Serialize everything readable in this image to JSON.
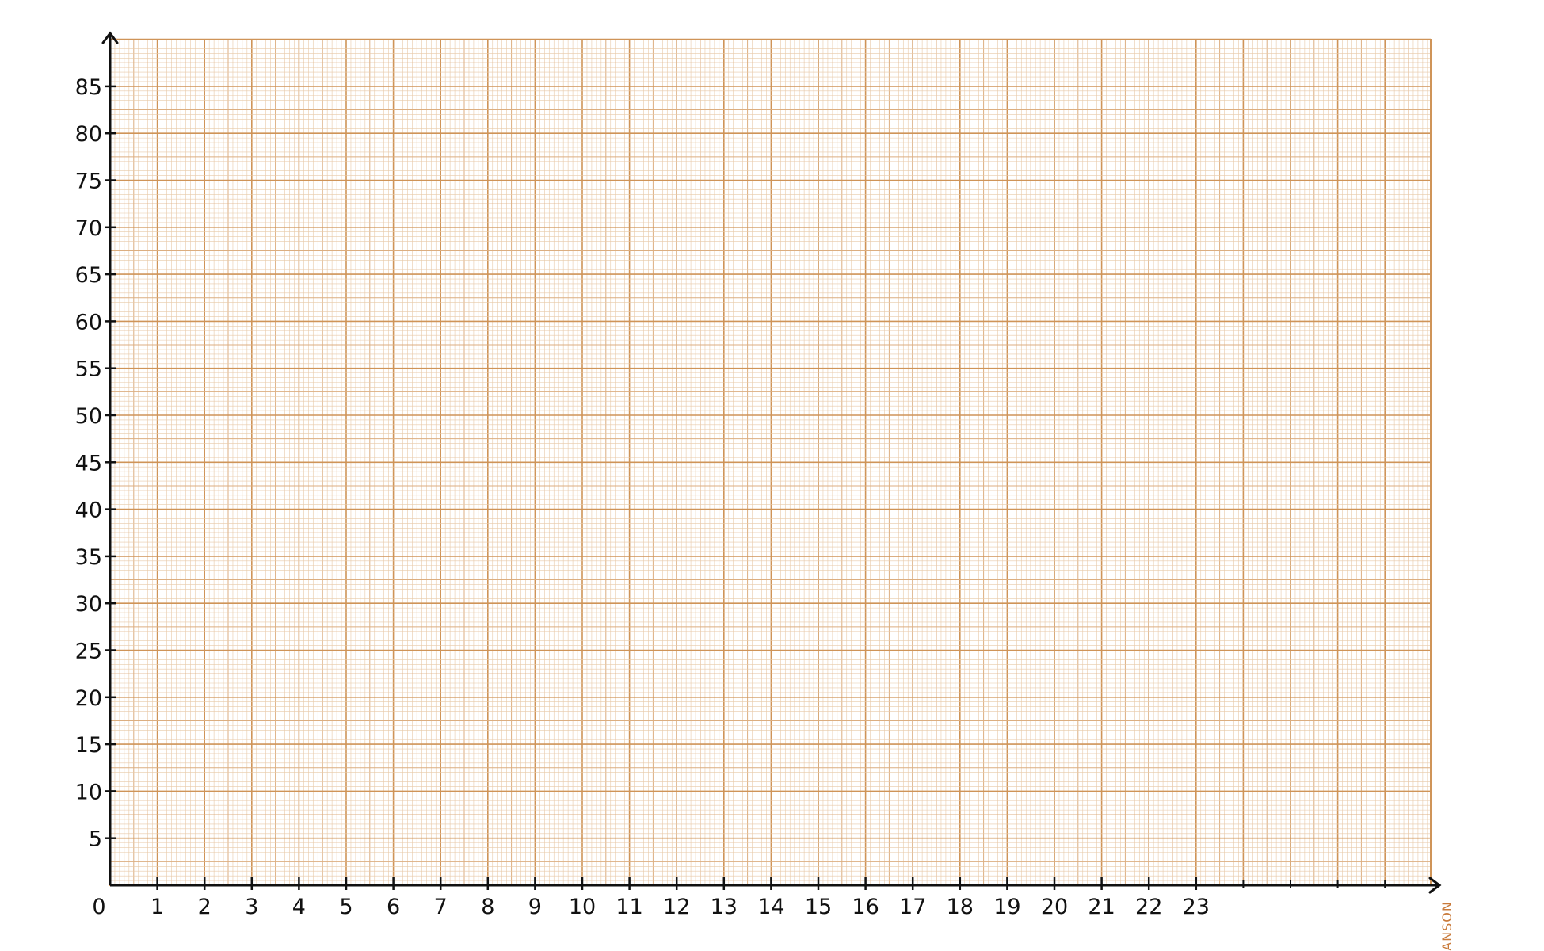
{
  "chart_data": {
    "type": "line",
    "title": "",
    "xlabel": "",
    "ylabel": "",
    "x_ticks": [
      "0",
      "1",
      "2",
      "3",
      "4",
      "5",
      "6",
      "7",
      "8",
      "9",
      "10",
      "11",
      "12",
      "13",
      "14",
      "15",
      "16",
      "17",
      "18",
      "19",
      "20",
      "21",
      "22",
      "23"
    ],
    "y_ticks": [
      "5",
      "10",
      "15",
      "20",
      "25",
      "30",
      "35",
      "40",
      "45",
      "50",
      "55",
      "60",
      "65",
      "70",
      "75",
      "80",
      "85"
    ],
    "xlim": [
      0,
      28
    ],
    "ylim": [
      0,
      90
    ],
    "grid": true,
    "series": []
  },
  "branding": {
    "text": "CANSON"
  },
  "colors": {
    "paper": "#ffffff",
    "grid_minor": "#e8c9a8",
    "grid_mid": "#dcae80",
    "grid_major": "#cf9458",
    "ink": "#111111",
    "brand": "#c97a3a"
  }
}
